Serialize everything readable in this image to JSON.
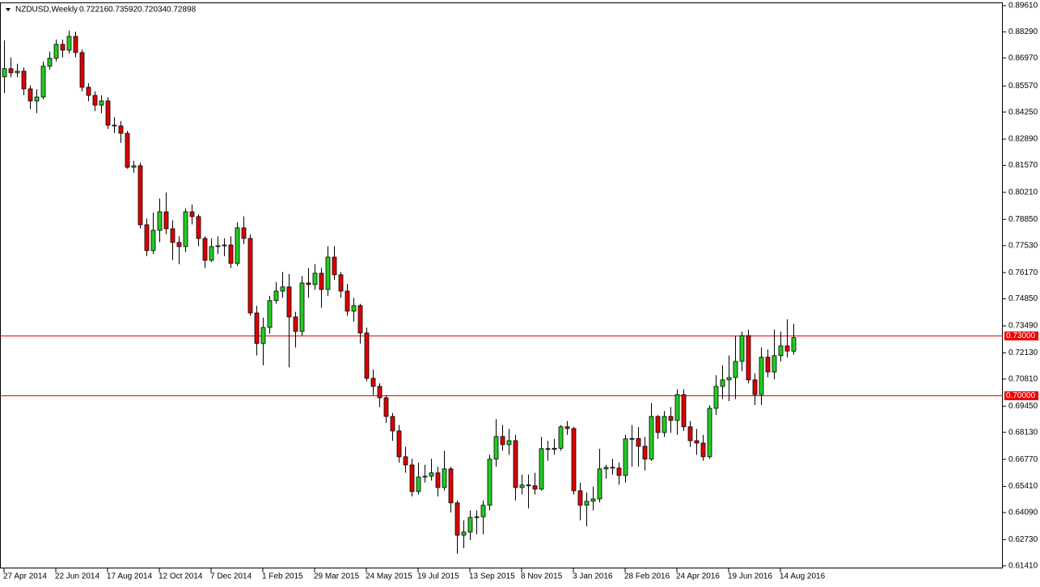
{
  "chart_data": {
    "type": "candlestick",
    "title": "NZDUSD,Weekly",
    "categories": [
      "27 Apr 2014",
      null,
      null,
      null,
      null,
      null,
      null,
      null,
      "22 Jun 2014",
      null,
      null,
      null,
      null,
      null,
      null,
      null,
      "17 Aug 2014",
      null,
      null,
      null,
      null,
      null,
      null,
      null,
      "12 Oct 2014",
      null,
      null,
      null,
      null,
      null,
      null,
      null,
      "7 Dec 2014",
      null,
      null,
      null,
      null,
      null,
      null,
      null,
      "1 Feb 2015",
      null,
      null,
      null,
      null,
      null,
      null,
      null,
      "29 Mar 2015",
      null,
      null,
      null,
      null,
      null,
      null,
      null,
      "24 May 2015",
      null,
      null,
      null,
      null,
      null,
      null,
      null,
      "19 Jul 2015",
      null,
      null,
      null,
      null,
      null,
      null,
      null,
      "13 Sep 2015",
      null,
      null,
      null,
      null,
      null,
      null,
      null,
      "8 Nov 2015",
      null,
      null,
      null,
      null,
      null,
      null,
      null,
      "3 Jan 2016",
      null,
      null,
      null,
      null,
      null,
      null,
      null,
      "28 Feb 2016",
      null,
      null,
      null,
      null,
      null,
      null,
      null,
      "24 Apr 2016",
      null,
      null,
      null,
      null,
      null,
      null,
      null,
      "19 Jun 2016",
      null,
      null,
      null,
      null,
      null,
      null,
      null,
      "14 Aug 2016",
      null,
      null
    ],
    "open": [
      0.8603,
      0.8644,
      0.8623,
      0.8631,
      0.8542,
      0.8481,
      0.8501,
      0.8656,
      0.8696,
      0.8766,
      0.8737,
      0.8806,
      0.8725,
      0.855,
      0.8509,
      0.846,
      0.8481,
      0.8359,
      0.8355,
      0.8318,
      0.8147,
      0.8155,
      0.7858,
      0.7728,
      0.783,
      0.7923,
      0.7838,
      0.7769,
      0.7748,
      0.7923,
      0.7899,
      0.7789,
      0.7679,
      0.7748,
      0.7752,
      0.7756,
      0.7663,
      0.7842,
      0.7789,
      0.7414,
      0.726,
      0.7341,
      0.7476,
      0.7524,
      0.7545,
      0.7394,
      0.7321,
      0.7565,
      0.7557,
      0.7614,
      0.7532,
      0.7695,
      0.7606,
      0.7524,
      0.7423,
      0.7451,
      0.7313,
      0.7085,
      0.7044,
      0.6987,
      0.6893,
      0.682,
      0.669,
      0.6649,
      0.6515,
      0.6588,
      0.6592,
      0.6609,
      0.6535,
      0.6629,
      0.6458,
      0.6295,
      0.6311,
      0.6385,
      0.6388,
      0.6446,
      0.6678,
      0.6792,
      0.6751,
      0.6771,
      0.6535,
      0.6548,
      0.6544,
      0.6527,
      0.6731,
      0.6727,
      0.6733,
      0.6841,
      0.6832,
      0.6519,
      0.6446,
      0.6466,
      0.6478,
      0.6629,
      0.6637,
      0.6633,
      0.6596,
      0.678,
      0.6782,
      0.6743,
      0.6678,
      0.6893,
      0.6812,
      0.6893,
      0.6873,
      0.7003,
      0.6841,
      0.6771,
      0.6759,
      0.669,
      0.6934,
      0.7044,
      0.7077,
      0.7089,
      0.717,
      0.73,
      0.7077,
      0.7003,
      0.7191,
      0.7117,
      0.7199,
      0.7248,
      0.72216
    ],
    "high": [
      0.8786,
      0.87,
      0.8668,
      0.865,
      0.856,
      0.854,
      0.868,
      0.873,
      0.879,
      0.879,
      0.8835,
      0.883,
      0.874,
      0.857,
      0.853,
      0.851,
      0.85,
      0.84,
      0.838,
      0.833,
      0.818,
      0.817,
      0.789,
      0.792,
      0.799,
      0.802,
      0.788,
      0.78,
      0.794,
      0.796,
      0.791,
      0.78,
      0.779,
      0.78,
      0.779,
      0.78,
      0.787,
      0.79,
      0.781,
      0.745,
      0.739,
      0.75,
      0.757,
      0.762,
      0.761,
      0.742,
      0.76,
      0.764,
      0.766,
      0.764,
      0.775,
      0.775,
      0.762,
      0.756,
      0.749,
      0.746,
      0.734,
      0.713,
      0.706,
      0.7,
      0.691,
      0.685,
      0.674,
      0.668,
      0.666,
      0.665,
      0.668,
      0.664,
      0.672,
      0.664,
      0.647,
      0.637,
      0.642,
      0.642,
      0.647,
      0.67,
      0.688,
      0.685,
      0.683,
      0.68,
      0.66,
      0.66,
      0.661,
      0.679,
      0.677,
      0.678,
      0.685,
      0.687,
      0.684,
      0.656,
      0.651,
      0.654,
      0.673,
      0.665,
      0.668,
      0.666,
      0.68,
      0.685,
      0.684,
      0.679,
      0.696,
      0.69,
      0.692,
      0.694,
      0.703,
      0.703,
      0.687,
      0.683,
      0.68,
      0.695,
      0.71,
      0.715,
      0.72,
      0.73,
      0.732,
      0.733,
      0.711,
      0.724,
      0.723,
      0.733,
      0.732,
      0.7382,
      0.73592
    ],
    "low": [
      0.8521,
      0.86,
      0.86,
      0.851,
      0.844,
      0.842,
      0.849,
      0.864,
      0.868,
      0.87,
      0.872,
      0.87,
      0.853,
      0.848,
      0.843,
      0.842,
      0.834,
      0.832,
      0.827,
      0.814,
      0.812,
      0.784,
      0.77,
      0.771,
      0.777,
      0.781,
      0.768,
      0.766,
      0.772,
      0.786,
      0.775,
      0.764,
      0.767,
      0.771,
      0.77,
      0.764,
      0.765,
      0.776,
      0.74,
      0.72,
      0.715,
      0.731,
      0.746,
      0.749,
      0.714,
      0.724,
      0.73,
      0.749,
      0.753,
      0.744,
      0.75,
      0.758,
      0.749,
      0.74,
      0.737,
      0.726,
      0.707,
      0.7,
      0.694,
      0.686,
      0.677,
      0.666,
      0.661,
      0.649,
      0.65,
      0.656,
      0.657,
      0.649,
      0.652,
      0.641,
      0.6202,
      0.623,
      0.627,
      0.63,
      0.63,
      0.642,
      0.664,
      0.672,
      0.67,
      0.647,
      0.65,
      0.643,
      0.65,
      0.652,
      0.667,
      0.67,
      0.672,
      0.68,
      0.65,
      0.637,
      0.634,
      0.642,
      0.646,
      0.658,
      0.66,
      0.655,
      0.656,
      0.664,
      0.664,
      0.662,
      0.667,
      0.678,
      0.679,
      0.681,
      0.68,
      0.682,
      0.674,
      0.67,
      0.667,
      0.668,
      0.69,
      0.698,
      0.697,
      0.698,
      0.712,
      0.706,
      0.695,
      0.695,
      0.709,
      0.708,
      0.717,
      0.719,
      0.72034
    ],
    "close": [
      0.8644,
      0.8623,
      0.8631,
      0.8542,
      0.8481,
      0.8501,
      0.8656,
      0.8696,
      0.8766,
      0.8737,
      0.8806,
      0.8725,
      0.855,
      0.8509,
      0.846,
      0.8481,
      0.8359,
      0.8355,
      0.8318,
      0.8147,
      0.8155,
      0.7858,
      0.7728,
      0.783,
      0.7923,
      0.7838,
      0.7769,
      0.7748,
      0.7923,
      0.7899,
      0.7789,
      0.7679,
      0.7748,
      0.7752,
      0.7756,
      0.7663,
      0.7842,
      0.7789,
      0.7414,
      0.726,
      0.7341,
      0.7476,
      0.7524,
      0.7545,
      0.7394,
      0.7321,
      0.7565,
      0.7557,
      0.7614,
      0.7532,
      0.7695,
      0.7606,
      0.7524,
      0.7423,
      0.7451,
      0.7313,
      0.7085,
      0.7044,
      0.6987,
      0.6893,
      0.682,
      0.669,
      0.6649,
      0.6515,
      0.6588,
      0.6592,
      0.6609,
      0.6535,
      0.6629,
      0.6458,
      0.6295,
      0.6311,
      0.6385,
      0.6388,
      0.6446,
      0.6678,
      0.6792,
      0.6751,
      0.6771,
      0.6535,
      0.6548,
      0.6544,
      0.6527,
      0.6731,
      0.6727,
      0.6733,
      0.6841,
      0.6832,
      0.6519,
      0.6446,
      0.6466,
      0.6478,
      0.6629,
      0.6637,
      0.6633,
      0.6596,
      0.678,
      0.6782,
      0.6743,
      0.6678,
      0.6893,
      0.6812,
      0.6893,
      0.6873,
      0.7003,
      0.6841,
      0.6771,
      0.6759,
      0.669,
      0.6934,
      0.7044,
      0.7077,
      0.7089,
      0.717,
      0.73,
      0.7077,
      0.7003,
      0.7191,
      0.7117,
      0.7199,
      0.7248,
      0.7222,
      0.72898
    ],
    "up_color": "#22cc22",
    "down_color": "#dd0000",
    "ylim": [
      0.6128,
      0.8973
    ],
    "yticks": [
      {
        "value": 0.8961,
        "label": "0.89610"
      },
      {
        "value": 0.8829,
        "label": "0.88290"
      },
      {
        "value": 0.8697,
        "label": "0.86970"
      },
      {
        "value": 0.8557,
        "label": "0.85570"
      },
      {
        "value": 0.8425,
        "label": "0.84250"
      },
      {
        "value": 0.8289,
        "label": "0.82890"
      },
      {
        "value": 0.8157,
        "label": "0.81570"
      },
      {
        "value": 0.8021,
        "label": "0.80210"
      },
      {
        "value": 0.7885,
        "label": "0.78850"
      },
      {
        "value": 0.7753,
        "label": "0.77530"
      },
      {
        "value": 0.7617,
        "label": "0.76170"
      },
      {
        "value": 0.7485,
        "label": "0.74850"
      },
      {
        "value": 0.7349,
        "label": "0.73490"
      },
      {
        "value": 0.7213,
        "label": "0.72130"
      },
      {
        "value": 0.7081,
        "label": "0.70810"
      },
      {
        "value": 0.6945,
        "label": "0.69450"
      },
      {
        "value": 0.6813,
        "label": "0.68130"
      },
      {
        "value": 0.6677,
        "label": "0.66770"
      },
      {
        "value": 0.6541,
        "label": "0.65410"
      },
      {
        "value": 0.6409,
        "label": "0.64090"
      },
      {
        "value": 0.6273,
        "label": "0.62730"
      },
      {
        "value": 0.6141,
        "label": "0.61410"
      }
    ],
    "levels": [
      {
        "value": 0.73,
        "label": "0.73000"
      },
      {
        "value": 0.7,
        "label": "0.70000"
      }
    ],
    "level_color": "#ee0000"
  }
}
